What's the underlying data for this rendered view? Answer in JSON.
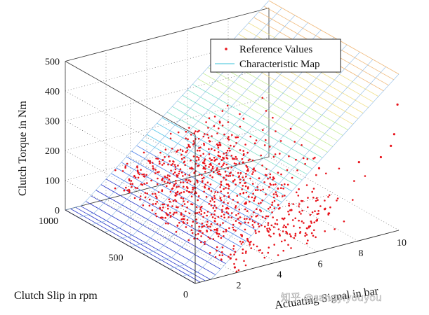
{
  "chart_data": {
    "type": "scatter3d_surface",
    "title": "",
    "zlabel": "Clutch Torque in Nm",
    "ylabel": "Clutch Slip in rpm",
    "xlabel": "Actuating Signal in bar",
    "xlim": [
      0,
      10
    ],
    "ylim": [
      0,
      1000
    ],
    "zlim": [
      0,
      500
    ],
    "xticks": [
      "2",
      "4",
      "6",
      "8",
      "10"
    ],
    "yticks": [
      "0",
      "500",
      "1000"
    ],
    "zticks": [
      "0",
      "100",
      "200",
      "300",
      "400",
      "500"
    ],
    "grid": true,
    "legend": {
      "placement": "top-right",
      "entries": [
        {
          "label": "Reference Values",
          "marker": "dot",
          "color": "#e8141c"
        },
        {
          "label": "Characteristic Map",
          "marker": "line",
          "color": "#7ad6e6"
        }
      ]
    },
    "series": [
      {
        "name": "Reference Values",
        "kind": "scatter",
        "color": "#e8141c",
        "points": [
          [
            2.2,
            40,
            5
          ],
          [
            2.5,
            120,
            10
          ],
          [
            3.0,
            300,
            40
          ],
          [
            3.2,
            500,
            55
          ],
          [
            3.5,
            700,
            60
          ],
          [
            3.8,
            850,
            70
          ],
          [
            4.0,
            950,
            80
          ],
          [
            4.5,
            600,
            90
          ],
          [
            5.0,
            400,
            80
          ],
          [
            5.5,
            800,
            110
          ],
          [
            6.0,
            200,
            90
          ],
          [
            6.5,
            650,
            130
          ],
          [
            7.0,
            100,
            100
          ],
          [
            8.0,
            300,
            170
          ],
          [
            9.0,
            150,
            210
          ],
          [
            9.5,
            60,
            240
          ],
          [
            9.8,
            30,
            280
          ],
          [
            9.9,
            20,
            320
          ],
          [
            10.0,
            10,
            420
          ]
        ]
      },
      {
        "name": "Characteristic Map",
        "kind": "surface",
        "x_range": [
          0,
          10
        ],
        "y_range": [
          0,
          1000
        ],
        "z_at_x_max": 500,
        "colormap": [
          "#2433c8",
          "#4a7ee8",
          "#55c6e8",
          "#7fe0c8",
          "#c8ee9a",
          "#f0e08a",
          "#f0b878"
        ]
      }
    ]
  },
  "watermark": {
    "text": "知乎 @sangyiyouyou"
  }
}
